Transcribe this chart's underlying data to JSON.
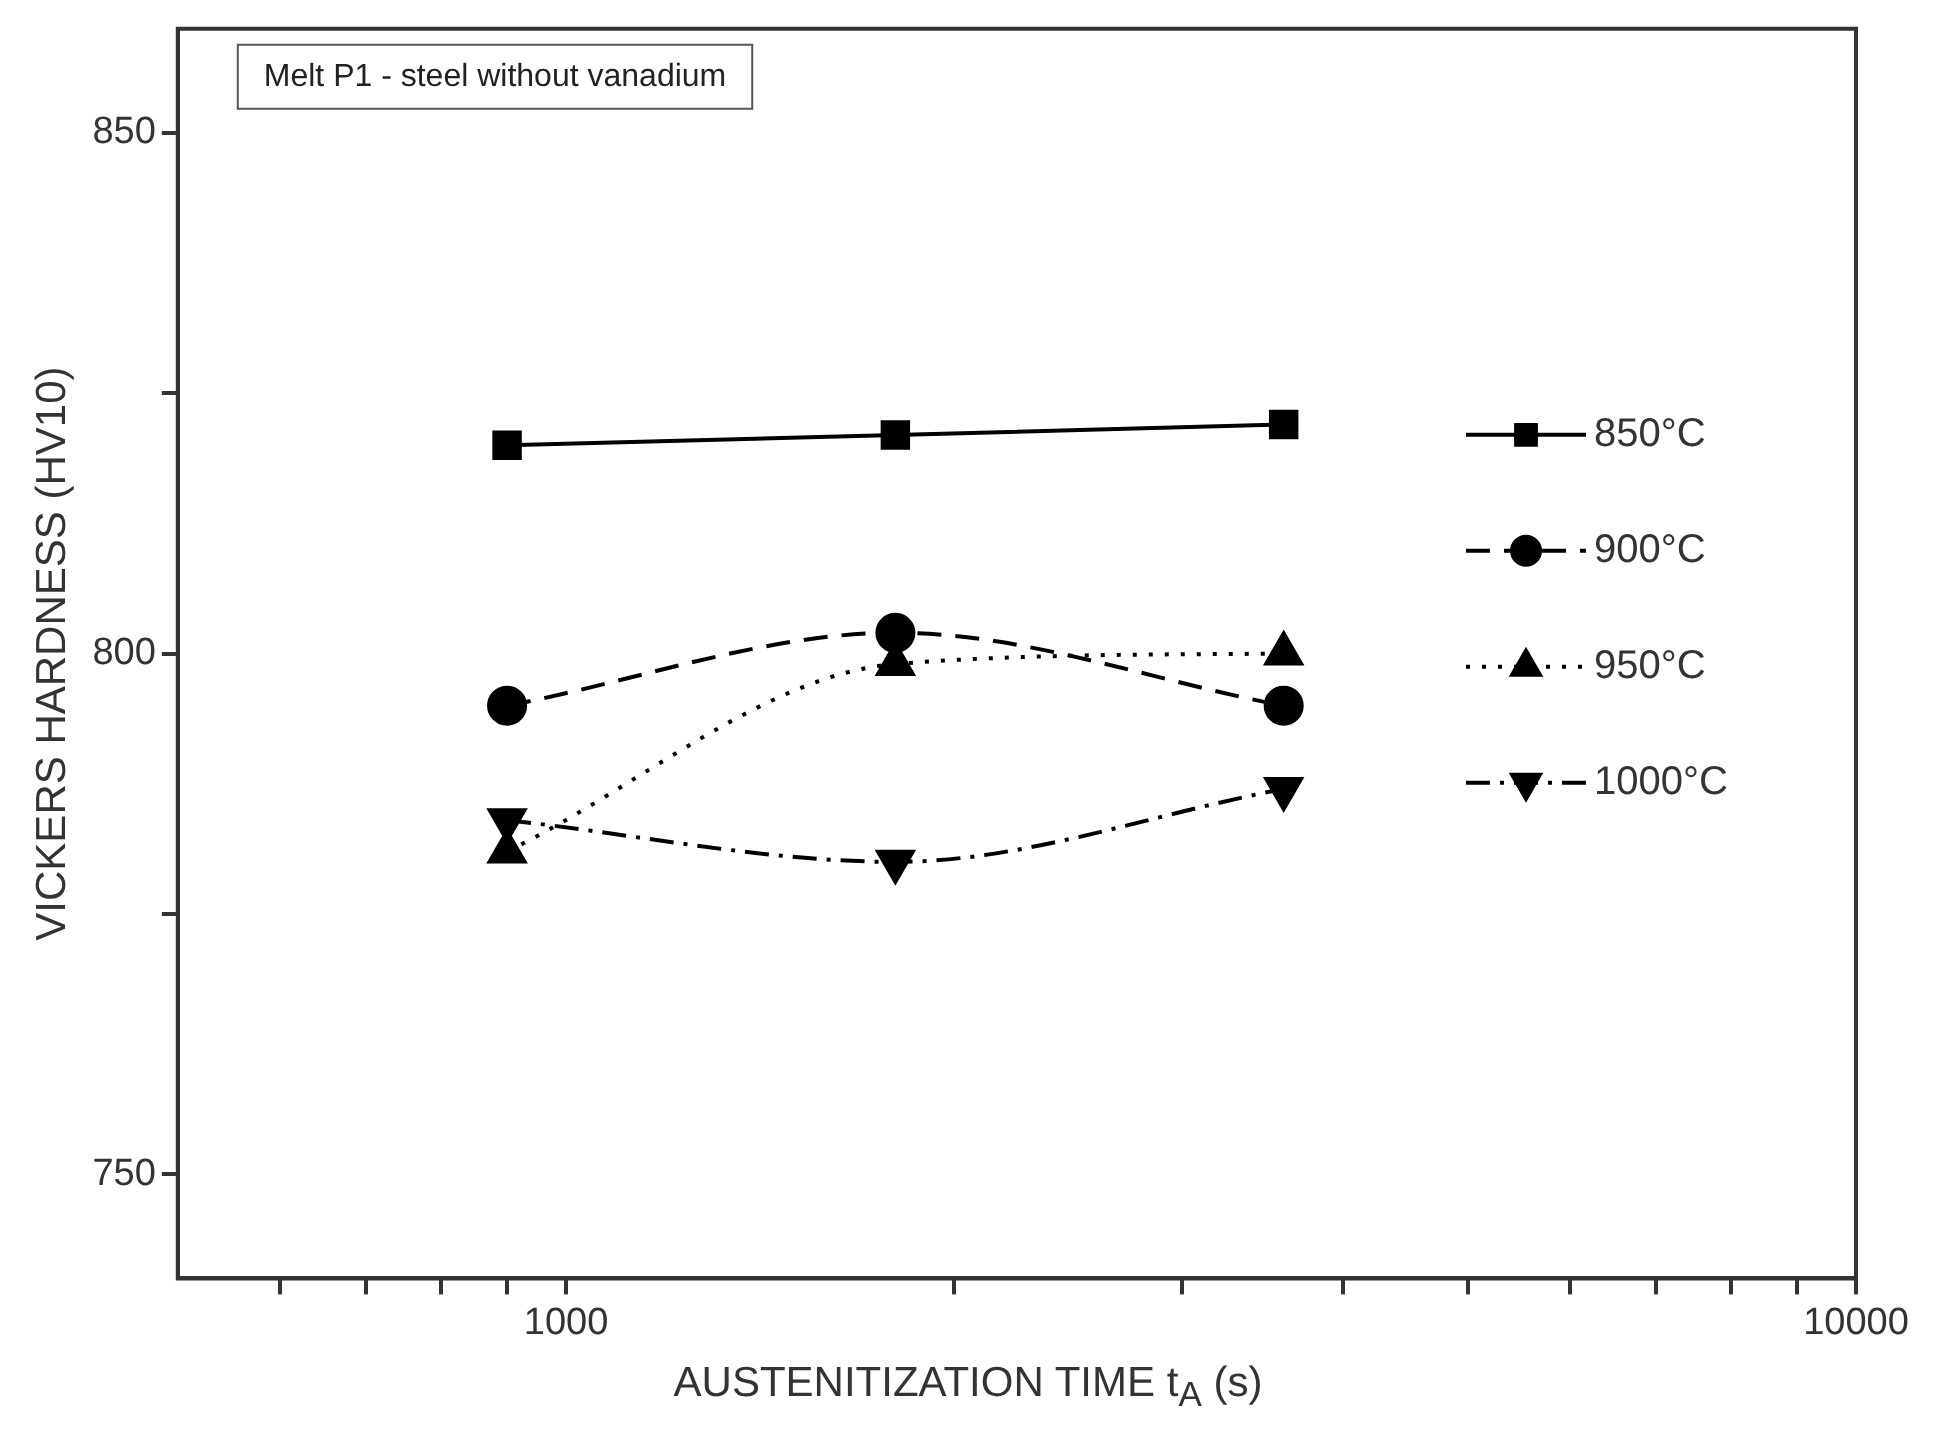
{
  "chart_data": {
    "type": "line",
    "xlabel": "AUSTENITIZATION TIME t$_{A}$ (s)",
    "ylabel": "VICKERS HARDNESS (HV10)",
    "annotations": [
      "Melt P1 - steel without vanadium"
    ],
    "log": "x",
    "xlim": [
      500,
      10000
    ],
    "xticks": [
      {
        "value": 600,
        "label": null
      },
      {
        "value": 700,
        "label": null
      },
      {
        "value": 800,
        "label": null
      },
      {
        "value": 900,
        "label": null
      },
      1000,
      {
        "value": 2000,
        "label": null
      },
      {
        "value": 3000,
        "label": null
      },
      {
        "value": 4000,
        "label": null
      },
      {
        "value": 5000,
        "label": null
      },
      {
        "value": 6000,
        "label": null
      },
      {
        "value": 7000,
        "label": null
      },
      {
        "value": 8000,
        "label": null
      },
      {
        "value": 9000,
        "label": null
      },
      10000
    ],
    "ylim": [
      740,
      860
    ],
    "yticks": [
      750,
      {
        "value": 775,
        "label": null
      },
      800,
      {
        "value": 825,
        "label": null
      },
      850
    ],
    "grid": false,
    "legend": "right",
    "x": [
      900,
      1800,
      3600
    ],
    "series": [
      {
        "name": "850°C",
        "color": "#000000",
        "marker": "square",
        "line_style": "solid",
        "values": [
          820,
          821,
          822
        ]
      },
      {
        "name": "900°C",
        "color": "#000000",
        "marker": "circle",
        "line_style": "dashed",
        "values": [
          795,
          802,
          795
        ]
      },
      {
        "name": "950°C",
        "color": "#000000",
        "marker": "triangle",
        "line_style": "dotted",
        "values": [
          781,
          799,
          800
        ]
      },
      {
        "name": "1000°C",
        "color": "#000000",
        "marker": "triangle-down",
        "line_style": "dashdot",
        "values": [
          784,
          780,
          787
        ]
      }
    ]
  }
}
